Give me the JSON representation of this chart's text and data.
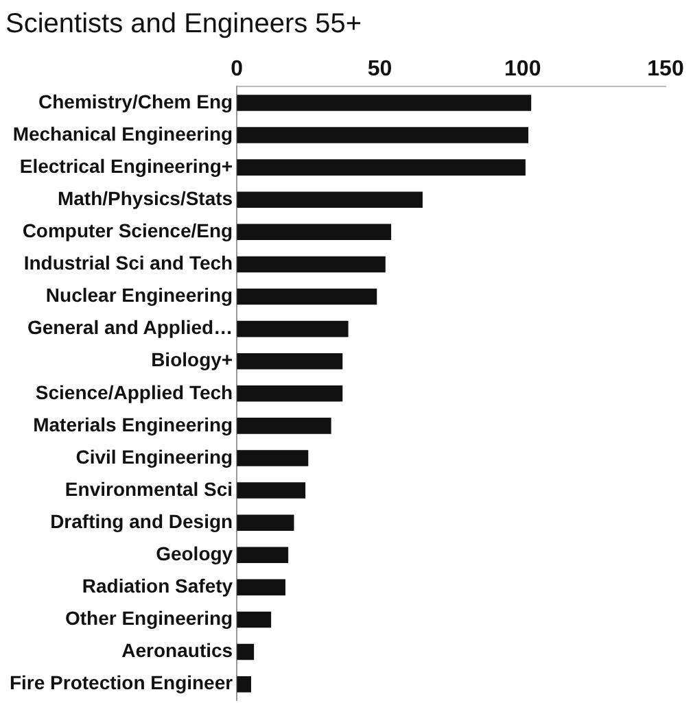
{
  "chart_data": {
    "type": "bar",
    "orientation": "horizontal",
    "title": "Scientists and Engineers 55+",
    "categories": [
      "Chemistry/Chem Eng",
      "Mechanical Engineering",
      "Electrical Engineering+",
      "Math/Physics/Stats",
      "Computer Science/Eng",
      "Industrial Sci and Tech",
      "Nuclear Engineering",
      "General and Applied…",
      "Biology+",
      "Science/Applied Tech",
      "Materials Engineering",
      "Civil Engineering",
      "Environmental Sci",
      "Drafting and Design",
      "Geology",
      "Radiation Safety",
      "Other Engineering",
      "Aeronautics",
      "Fire Protection Engineer"
    ],
    "values": [
      103,
      102,
      101,
      65,
      54,
      52,
      49,
      39,
      37,
      37,
      33,
      25,
      24,
      20,
      18,
      17,
      12,
      6,
      5
    ],
    "color": "#111111",
    "xlim": [
      0,
      150
    ],
    "xticks": [
      0,
      50,
      100,
      150
    ],
    "grid": false,
    "legend": false
  }
}
